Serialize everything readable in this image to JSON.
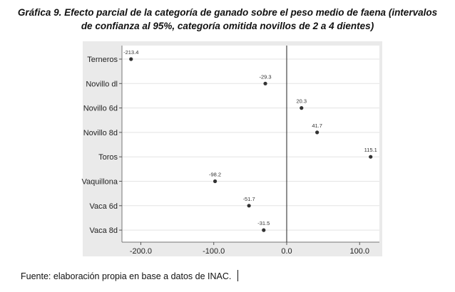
{
  "figure": {
    "title_line1": "Gráfica 9.  Efecto parcial de la categoría de ganado sobre el peso medio de faena (intervalos",
    "title_line2": "de confianza al 95%, categoría omitida novillos de 2 a 4 dientes)",
    "source": "Fuente: elaboración propia en base a datos de INAC."
  },
  "chart_data": {
    "type": "scatter",
    "title": "Gráfica 9.  Efecto parcial de la categoría de ganado sobre el peso medio de faena (intervalos de confianza al 95%, categoría omitida novillos de 2 a 4 dientes)",
    "xlabel": "",
    "ylabel": "",
    "xlim": [
      -220,
      120
    ],
    "x_ticks": [
      -200.0,
      -100.0,
      0.0,
      100.0
    ],
    "x_tick_labels": [
      "-200.0",
      "-100.0",
      "0.0",
      "100.0"
    ],
    "categories": [
      "Terneros",
      "Novillo dl",
      "Novillo 6d",
      "Novillo 8d",
      "Toros",
      "Vaquillona",
      "Vaca 6d",
      "Vaca 8d"
    ],
    "values": [
      -213.4,
      -29.3,
      20.3,
      41.7,
      115.1,
      -98.2,
      -51.7,
      -31.5
    ],
    "data_labels": [
      "-213.4",
      "-29.3",
      "20.3",
      "41.7",
      "115.1",
      "-98.2",
      "-51.7",
      "-31.5"
    ],
    "reference_line_x": 0,
    "grid": "horizontal",
    "colors": {
      "plot_background": "#ffffff",
      "outer_background": "#eaeaea",
      "grid": "#e3e3e3",
      "marker": "#333333",
      "reference_line": "#222222"
    }
  }
}
